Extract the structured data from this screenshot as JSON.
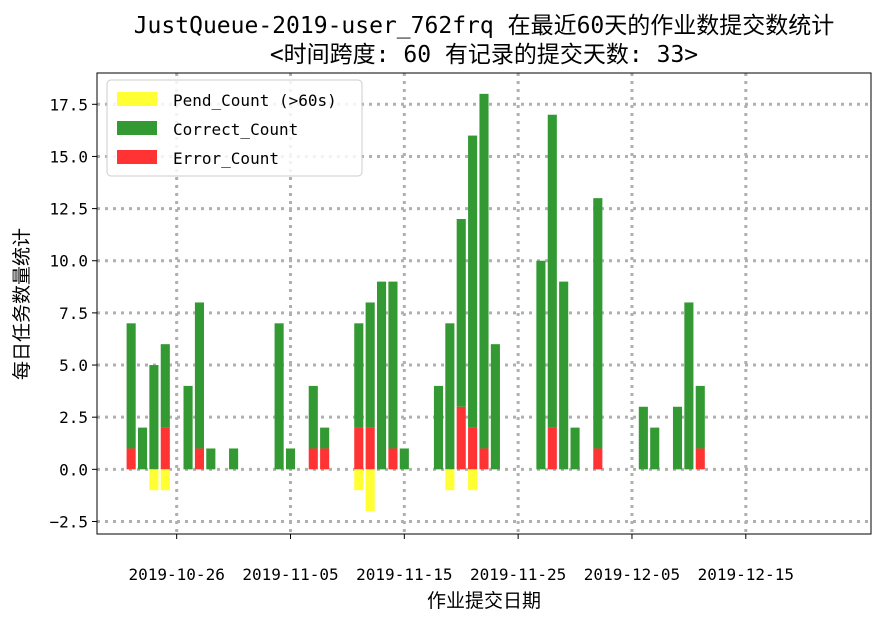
{
  "chart_data": {
    "type": "bar",
    "title_line1": "JustQueue-2019-user_762frq 在最近60天的作业数提交数统计",
    "title_line2": "<时间跨度: 60  有记录的提交天数: 33>",
    "xlabel": "作业提交日期",
    "ylabel": "每日任务数量统计",
    "xlim": [
      "2019-10-19",
      "2019-12-26"
    ],
    "ylim": [
      -3.1,
      19
    ],
    "yticks": [
      -2.5,
      0,
      2.5,
      5,
      7.5,
      10,
      12.5,
      15,
      17.5
    ],
    "ytick_labels": [
      "−2.5",
      "0.0",
      "2.5",
      "5.0",
      "7.5",
      "10.0",
      "12.5",
      "15.0",
      "17.5"
    ],
    "xticks": [
      "2019-10-26",
      "2019-11-05",
      "2019-11-15",
      "2019-11-25",
      "2019-12-05",
      "2019-12-15"
    ],
    "grid": true,
    "legend_position": "top-left",
    "colors": {
      "pend": "#ffff33",
      "correct": "#339933",
      "error": "#ff3333",
      "grid": "#b0b0b0"
    },
    "series": [
      {
        "name": "Pend_Count (>60s)",
        "key": "pend"
      },
      {
        "name": "Correct_Count",
        "key": "correct"
      },
      {
        "name": "Error_Count",
        "key": "error"
      }
    ],
    "points": [
      {
        "date": "2019-10-22",
        "correct": 6,
        "error": 1,
        "pend": 0
      },
      {
        "date": "2019-10-23",
        "correct": 2,
        "error": 0,
        "pend": 0
      },
      {
        "date": "2019-10-24",
        "correct": 5,
        "error": 0,
        "pend": 1
      },
      {
        "date": "2019-10-25",
        "correct": 4,
        "error": 2,
        "pend": 1
      },
      {
        "date": "2019-10-27",
        "correct": 4,
        "error": 0,
        "pend": 0
      },
      {
        "date": "2019-10-28",
        "correct": 7,
        "error": 1,
        "pend": 0
      },
      {
        "date": "2019-10-29",
        "correct": 1,
        "error": 0,
        "pend": 0
      },
      {
        "date": "2019-10-31",
        "correct": 1,
        "error": 0,
        "pend": 0
      },
      {
        "date": "2019-11-04",
        "correct": 7,
        "error": 0,
        "pend": 0
      },
      {
        "date": "2019-11-05",
        "correct": 1,
        "error": 0,
        "pend": 0
      },
      {
        "date": "2019-11-07",
        "correct": 3,
        "error": 1,
        "pend": 0
      },
      {
        "date": "2019-11-08",
        "correct": 1,
        "error": 1,
        "pend": 0
      },
      {
        "date": "2019-11-11",
        "correct": 5,
        "error": 2,
        "pend": 1
      },
      {
        "date": "2019-11-12",
        "correct": 6,
        "error": 2,
        "pend": 2
      },
      {
        "date": "2019-11-13",
        "correct": 9,
        "error": 0,
        "pend": 0
      },
      {
        "date": "2019-11-14",
        "correct": 8,
        "error": 1,
        "pend": 0
      },
      {
        "date": "2019-11-15",
        "correct": 1,
        "error": 0,
        "pend": 0
      },
      {
        "date": "2019-11-18",
        "correct": 4,
        "error": 0,
        "pend": 0
      },
      {
        "date": "2019-11-19",
        "correct": 7,
        "error": 0,
        "pend": 1
      },
      {
        "date": "2019-11-20",
        "correct": 9,
        "error": 3,
        "pend": 0
      },
      {
        "date": "2019-11-21",
        "correct": 14,
        "error": 2,
        "pend": 1
      },
      {
        "date": "2019-11-22",
        "correct": 17,
        "error": 1,
        "pend": 0
      },
      {
        "date": "2019-11-23",
        "correct": 6,
        "error": 0,
        "pend": 0
      },
      {
        "date": "2019-11-27",
        "correct": 10,
        "error": 0,
        "pend": 0
      },
      {
        "date": "2019-11-28",
        "correct": 15,
        "error": 2,
        "pend": 0
      },
      {
        "date": "2019-11-29",
        "correct": 9,
        "error": 0,
        "pend": 0
      },
      {
        "date": "2019-11-30",
        "correct": 2,
        "error": 0,
        "pend": 0
      },
      {
        "date": "2019-12-02",
        "correct": 12,
        "error": 1,
        "pend": 0
      },
      {
        "date": "2019-12-06",
        "correct": 3,
        "error": 0,
        "pend": 0
      },
      {
        "date": "2019-12-07",
        "correct": 2,
        "error": 0,
        "pend": 0
      },
      {
        "date": "2019-12-09",
        "correct": 3,
        "error": 0,
        "pend": 0
      },
      {
        "date": "2019-12-10",
        "correct": 8,
        "error": 0,
        "pend": 0
      },
      {
        "date": "2019-12-11",
        "correct": 3,
        "error": 1,
        "pend": 0
      }
    ]
  }
}
